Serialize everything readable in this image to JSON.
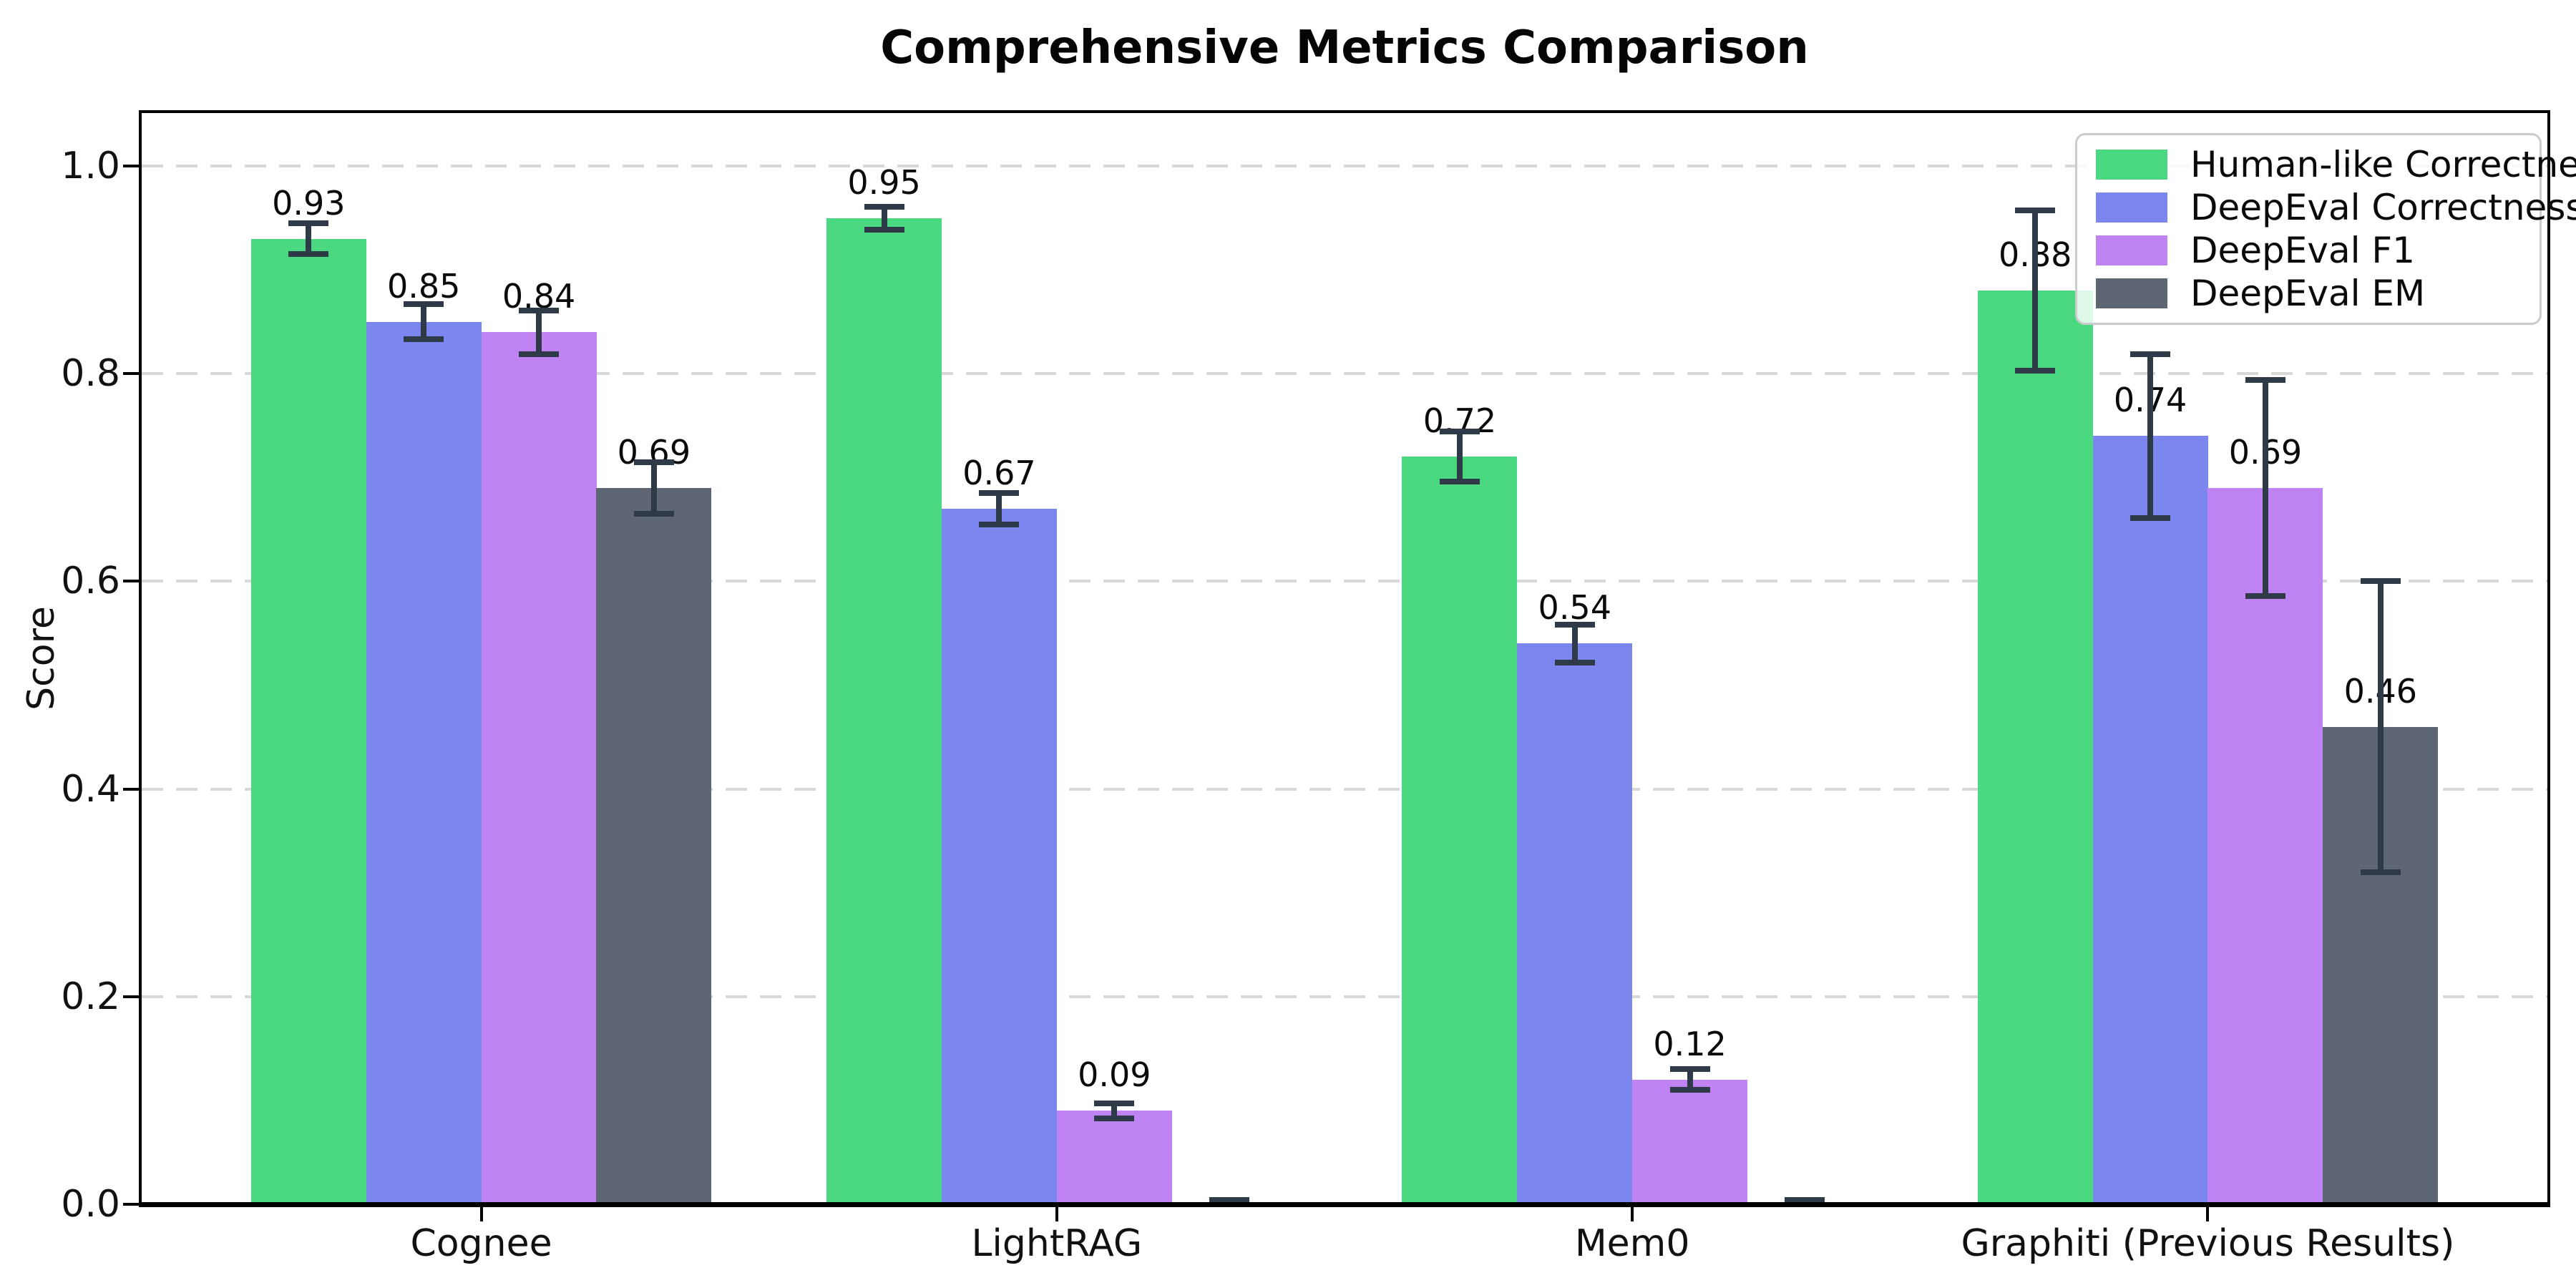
{
  "title": "Comprehensive Metrics Comparison",
  "colors": {
    "background": "#ffffff",
    "error_bar": "#2e3a47",
    "gridline": "#d8d8d8",
    "legend_border": "#cccccc",
    "axis": "#000000"
  },
  "chart_data": {
    "type": "bar",
    "title": "Comprehensive Metrics Comparison",
    "xlabel": "",
    "ylabel": "Score",
    "ylim": [
      0,
      1.05
    ],
    "yticks": [
      0.0,
      0.2,
      0.4,
      0.6,
      0.8,
      1.0
    ],
    "grid": "horizontal-dashed",
    "legend_position": "upper-right",
    "categories": [
      "Cognee",
      "LightRAG",
      "Mem0",
      "Graphiti (Previous Results)"
    ],
    "series": [
      {
        "name": "Human-like Correctness",
        "color": "#4ad981",
        "values": [
          0.93,
          0.95,
          0.72,
          0.88
        ],
        "errors": [
          0.015,
          0.011,
          0.024,
          0.077
        ],
        "labels": [
          "0.93",
          "0.95",
          "0.72",
          "0.88"
        ]
      },
      {
        "name": "DeepEval Correctness",
        "color": "#7b86ee",
        "values": [
          0.85,
          0.67,
          0.54,
          0.74
        ],
        "errors": [
          0.017,
          0.015,
          0.018,
          0.079
        ],
        "labels": [
          "0.85",
          "0.67",
          "0.54",
          "0.74"
        ]
      },
      {
        "name": "DeepEval F1",
        "color": "#c083f3",
        "values": [
          0.84,
          0.09,
          0.12,
          0.69
        ],
        "errors": [
          0.021,
          0.007,
          0.01,
          0.104
        ],
        "labels": [
          "0.84",
          "0.09",
          "0.12",
          "0.69"
        ]
      },
      {
        "name": "DeepEval EM",
        "color": "#5e6673",
        "values": [
          0.69,
          0.0,
          0.0,
          0.46
        ],
        "errors": [
          0.025,
          0.004,
          0.004,
          0.14
        ],
        "labels": [
          "0.69",
          null,
          null,
          "0.46"
        ]
      }
    ]
  }
}
